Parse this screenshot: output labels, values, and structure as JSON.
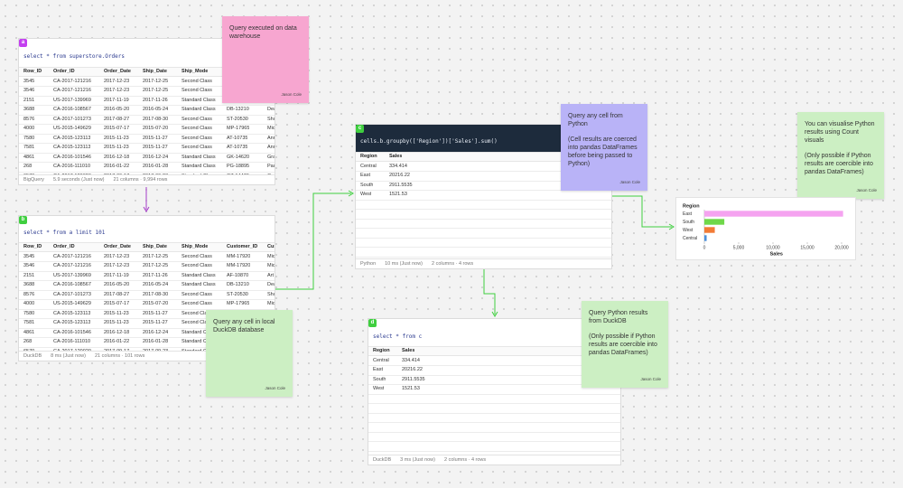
{
  "cells": [
    {
      "label": "a",
      "code": "select * from superstore.Orders",
      "columns": [
        "Row_ID",
        "Order_ID",
        "Order_Date",
        "Ship_Date",
        "Ship_Mode"
      ],
      "rows": [
        [
          "3545",
          "CA-2017-121216",
          "2017-12-23",
          "2017-12-25",
          "Second Class"
        ],
        [
          "3546",
          "CA-2017-121216",
          "2017-12-23",
          "2017-12-25",
          "Second Class"
        ],
        [
          "2151",
          "US-2017-139969",
          "2017-11-19",
          "2017-11-26",
          "Standard Class"
        ],
        [
          "3688",
          "CA-2016-108567",
          "2016-05-20",
          "2016-05-24",
          "Standard Class",
          "DB-13210",
          "Dea"
        ],
        [
          "8576",
          "CA-2017-101273",
          "2017-08-27",
          "2017-08-30",
          "Second Class",
          "ST-20530",
          "Shu"
        ],
        [
          "4000",
          "US-2015-149629",
          "2015-07-17",
          "2015-07-20",
          "Second Class",
          "MP-17965",
          "Mic"
        ],
        [
          "7580",
          "CA-2015-123113",
          "2015-11-23",
          "2015-11-27",
          "Second Class",
          "AT-10735",
          "Ann"
        ],
        [
          "7581",
          "CA-2015-123113",
          "2015-11-23",
          "2015-11-27",
          "Second Class",
          "AT-10735",
          "Ann"
        ],
        [
          "4861",
          "CA-2016-101546",
          "2016-12-18",
          "2016-12-24",
          "Standard Class",
          "GK-14620",
          "Gra"
        ],
        [
          "268",
          "CA-2016-111010",
          "2016-01-22",
          "2016-01-28",
          "Standard Class",
          "PG-18895",
          "Pau"
        ],
        [
          "6570",
          "CA-2017-120020",
          "2017-09-17",
          "2017-09-23",
          "Standard Class",
          "GZ-14470",
          "Gar"
        ]
      ],
      "footer": {
        "source": "BigQuery",
        "time": "5.9 seconds (Just now)",
        "shape": "21 columns · 9,994 rows"
      }
    },
    {
      "label": "b",
      "code": "select * from a limit 101",
      "columns": [
        "Row_ID",
        "Order_ID",
        "Order_Date",
        "Ship_Date",
        "Ship_Mode",
        "Customer_ID",
        "Cus"
      ],
      "rows": [
        [
          "3545",
          "CA-2017-121216",
          "2017-12-23",
          "2017-12-25",
          "Second Class",
          "MM-17920",
          "Mic"
        ],
        [
          "3546",
          "CA-2017-121216",
          "2017-12-23",
          "2017-12-25",
          "Second Class",
          "MM-17920",
          "Mic"
        ],
        [
          "2151",
          "US-2017-139969",
          "2017-11-19",
          "2017-11-26",
          "Standard Class",
          "AF-10870",
          "Art"
        ],
        [
          "3688",
          "CA-2016-108567",
          "2016-05-20",
          "2016-05-24",
          "Standard Class",
          "DB-13210",
          "Dea"
        ],
        [
          "8576",
          "CA-2017-101273",
          "2017-08-27",
          "2017-08-30",
          "Second Class",
          "ST-20530",
          "Shu"
        ],
        [
          "4000",
          "US-2015-149629",
          "2015-07-17",
          "2015-07-20",
          "Second Class",
          "MP-17965",
          "Mic"
        ],
        [
          "7580",
          "CA-2015-123113",
          "2015-11-23",
          "2015-11-27",
          "Second Class",
          "AT-10735",
          "Ann"
        ],
        [
          "7581",
          "CA-2015-123113",
          "2015-11-23",
          "2015-11-27",
          "Second Class"
        ],
        [
          "4861",
          "CA-2016-101546",
          "2016-12-18",
          "2016-12-24",
          "Standard Class"
        ],
        [
          "268",
          "CA-2016-111010",
          "2016-01-22",
          "2016-01-28",
          "Standard Class"
        ],
        [
          "6570",
          "CA-2017-120020",
          "2017-09-17",
          "2017-09-23",
          "Standard Class"
        ]
      ],
      "footer": {
        "source": "DuckDB",
        "time": "8 ms (Just now)",
        "shape": "21 columns · 101 rows"
      }
    },
    {
      "label": "c",
      "code": "cells.b.groupby(['Region'])['Sales'].sum()",
      "columns": [
        "Region",
        "Sales"
      ],
      "rows": [
        [
          "Central",
          "334.414"
        ],
        [
          "East",
          "20216.22"
        ],
        [
          "South",
          "2911.5535"
        ],
        [
          "West",
          "1521.53"
        ]
      ],
      "footer": {
        "source": "Python",
        "time": "10 ms (Just now)",
        "shape": "2 columns · 4 rows"
      }
    },
    {
      "label": "d",
      "code": "select * from c",
      "columns": [
        "Region",
        "Sales"
      ],
      "rows": [
        [
          "Central",
          "334.414"
        ],
        [
          "East",
          "20216.22"
        ],
        [
          "South",
          "2911.5535"
        ],
        [
          "West",
          "1521.53"
        ]
      ],
      "footer": {
        "source": "DuckDB",
        "time": "3 ms (Just now)",
        "shape": "2 columns · 4 rows"
      }
    }
  ],
  "notes": [
    {
      "paragraphs": [
        "Query executed on data warehouse"
      ],
      "author": "Jason Cole"
    },
    {
      "paragraphs": [
        "Query any cell in local DuckDB database"
      ],
      "author": "Jason Cole"
    },
    {
      "paragraphs": [
        "Query any cell from Python",
        "(Cell results are coerced into pandas DataFrames before being passed to Python)"
      ],
      "author": "Jason Cole"
    },
    {
      "paragraphs": [
        "You can visualise Python results using Count visuals",
        "(Only possible if Python results are coercible into pandas DataFrames)"
      ],
      "author": "Jason Cole"
    },
    {
      "paragraphs": [
        "Query Python results from DuckDB",
        "(Only possible if Python results are coercible into pandas DataFrames)"
      ],
      "author": "Jason Cole"
    }
  ],
  "chart_data": {
    "type": "bar",
    "orientation": "horizontal",
    "y_label": "Region",
    "x_label": "Sales",
    "categories": [
      "East",
      "South",
      "West",
      "Central"
    ],
    "values": [
      20216.22,
      2911.5535,
      1521.53,
      334.414
    ],
    "colors": [
      "#f5a3f0",
      "#6fd84a",
      "#f27b36",
      "#4b8fdc"
    ],
    "xlim": [
      0,
      21000
    ],
    "xticks": [
      0,
      {
        "value": 5000,
        "label": "5,000"
      },
      {
        "value": 10000,
        "label": "10,000"
      },
      {
        "value": 15000,
        "label": "15,000"
      },
      {
        "value": 20000,
        "label": "20,000"
      }
    ],
    "grid": false
  }
}
